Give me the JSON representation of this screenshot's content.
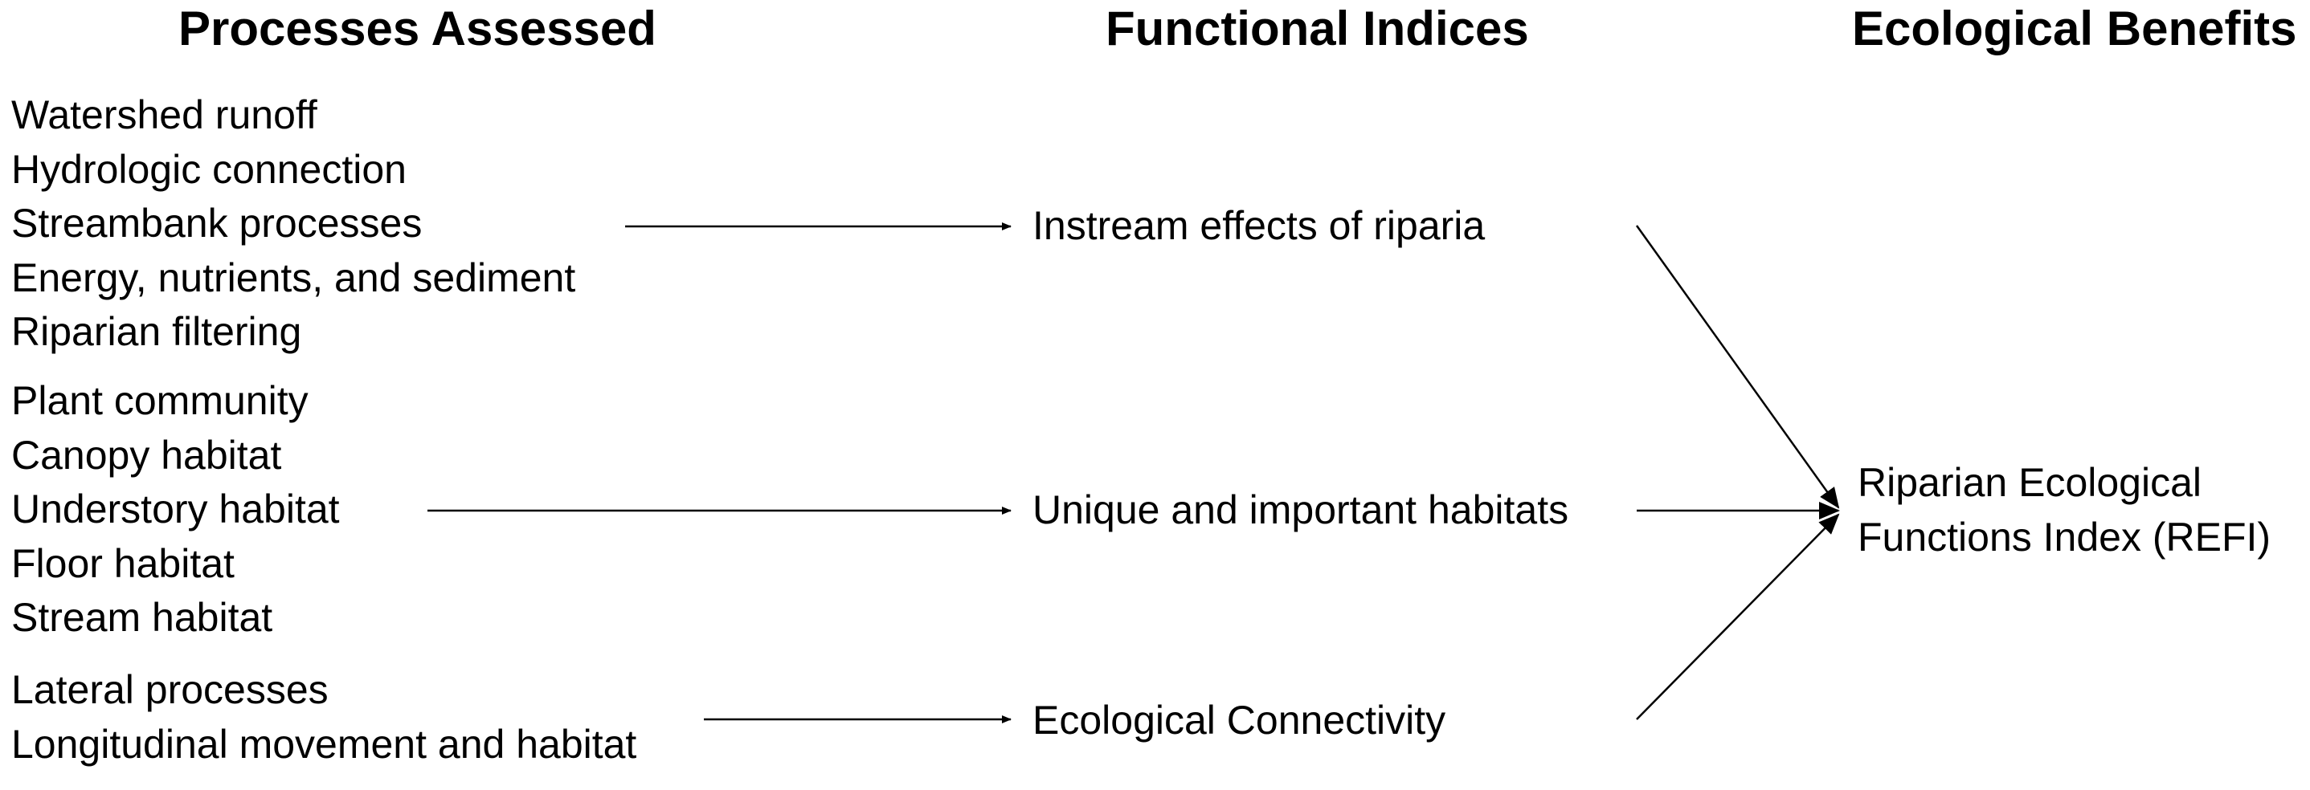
{
  "headers": {
    "processes": "Processes Assessed",
    "indices": "Functional Indices",
    "benefits": "Ecological Benefits"
  },
  "groups": [
    {
      "processes": [
        "Watershed runoff",
        "Hydrologic connection",
        "Streambank processes",
        "Energy, nutrients, and sediment",
        "Riparian filtering"
      ],
      "index": "Instream effects of riparia"
    },
    {
      "processes": [
        "Plant community",
        "Canopy habitat",
        "Understory habitat",
        "Floor habitat",
        "Stream habitat"
      ],
      "index": "Unique and important habitats"
    },
    {
      "processes": [
        "Lateral processes",
        "Longitudinal movement and habitat"
      ],
      "index": "Ecological Connectivity"
    }
  ],
  "benefit": {
    "line1": "Riparian Ecological",
    "line2": "Functions Index (REFI)"
  }
}
